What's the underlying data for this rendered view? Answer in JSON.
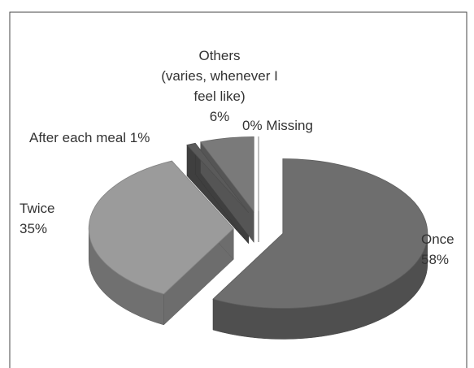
{
  "chart_data": {
    "type": "pie3d",
    "categories": [
      "Once",
      "Twice",
      "After each meal",
      "Others\n(varies, whenever I\nfeel like)",
      "Missing"
    ],
    "values": [
      58,
      35,
      1,
      6,
      0
    ],
    "value_labels": [
      "58%",
      "35%",
      "1%",
      "6%",
      "0%"
    ],
    "colors": [
      "#6e6e6e",
      "#9b9b9b",
      "#5a5a5a",
      "#7a7a7a",
      "#a0a0a0"
    ]
  }
}
